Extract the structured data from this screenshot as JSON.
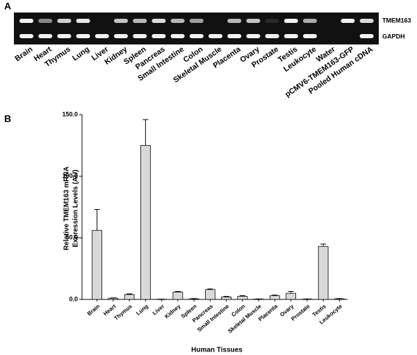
{
  "gel": {
    "label": "A",
    "lanes": [
      "Brain",
      "Heart",
      "Thymus",
      "Lung",
      "Liver",
      "Kidney",
      "Spleen",
      "Pancreas",
      "Small Intestine",
      "Colon",
      "Skeletal Muscle",
      "Placenta",
      "Ovary",
      "Prostate",
      "Testis",
      "Leukocyte",
      "Water",
      "pCMV6-TMEM163-GFP",
      "Pooled Human cDNA"
    ],
    "bands": [
      "TMEM163",
      "GAPDH"
    ]
  },
  "chart_data": {
    "type": "bar",
    "panel": "B",
    "ylabel": [
      "Relative TMEM163 mRNA",
      "Expression Levels (AU)"
    ],
    "xlabel": "Human Tissues",
    "categories": [
      "Brain",
      "Heart",
      "Thymus",
      "Lung",
      "Liver",
      "Kidney",
      "Spleen",
      "Pancreas",
      "Small Intestine",
      "Colon",
      "Skeletal Muscle",
      "Placenta",
      "Ovary",
      "Prostate",
      "Testis",
      "Leukocyte"
    ],
    "values": [
      56,
      1,
      4,
      125,
      0.2,
      6,
      0.5,
      8,
      2,
      2.5,
      0.3,
      3,
      5,
      0.3,
      43,
      0.5
    ],
    "errors": [
      17,
      0.3,
      0.5,
      21,
      0.1,
      0.5,
      0.2,
      0.5,
      0.5,
      0.5,
      0.1,
      0.5,
      1.5,
      0.1,
      2,
      0.2
    ],
    "color": "#d9d9d9",
    "ylim": [
      0,
      150
    ],
    "yticks": [
      {
        "value": 0,
        "label": "0.0"
      },
      {
        "value": 50,
        "label": "50.0"
      },
      {
        "value": 100,
        "label": "100.0"
      },
      {
        "value": 150,
        "label": "150.0"
      }
    ]
  }
}
